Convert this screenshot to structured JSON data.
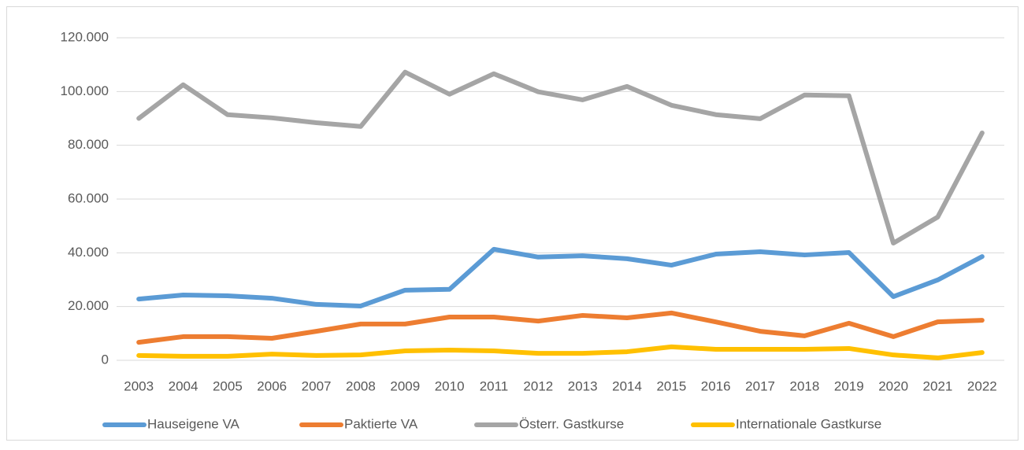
{
  "chart_data": {
    "type": "line",
    "categories": [
      "2003",
      "2004",
      "2005",
      "2006",
      "2007",
      "2008",
      "2009",
      "2010",
      "2011",
      "2012",
      "2013",
      "2014",
      "2015",
      "2016",
      "2017",
      "2018",
      "2019",
      "2020",
      "2021",
      "2022"
    ],
    "series": [
      {
        "name": "Hauseigene VA",
        "color": "#5b9bd5",
        "values": [
          22800,
          24300,
          24000,
          23100,
          20800,
          20200,
          26100,
          26400,
          41300,
          38400,
          38900,
          37800,
          35400,
          39500,
          40400,
          39200,
          40100,
          23700,
          29900,
          38600
        ]
      },
      {
        "name": "Paktierte VA",
        "color": "#ed7d31",
        "values": [
          6700,
          8800,
          8800,
          8200,
          10800,
          13500,
          13500,
          16100,
          16100,
          14600,
          16700,
          15800,
          17600,
          14300,
          10800,
          9100,
          13800,
          8800,
          14300,
          14900
        ]
      },
      {
        "name": "Österr. Gastkurse",
        "color": "#a5a5a5",
        "values": [
          90000,
          102500,
          91400,
          90200,
          88400,
          87000,
          107200,
          99000,
          106600,
          99900,
          96900,
          101900,
          94900,
          91400,
          89900,
          98700,
          98400,
          43600,
          53300,
          84600
        ]
      },
      {
        "name": "Internationale Gastkurse",
        "color": "#ffc000",
        "values": [
          1800,
          1500,
          1500,
          2300,
          1800,
          2000,
          3500,
          3800,
          3500,
          2600,
          2600,
          3200,
          5000,
          4100,
          4100,
          4100,
          4400,
          2000,
          900,
          2900
        ]
      }
    ],
    "ylim": [
      0,
      120000
    ],
    "yticks": [
      0,
      {
        "value": 20000,
        "label": "20.000"
      },
      {
        "value": 40000,
        "label": "40.000"
      },
      {
        "value": 60000,
        "label": "60.000"
      },
      {
        "value": 80000,
        "label": "80.000"
      },
      {
        "value": 100000,
        "label": "100.000"
      },
      {
        "value": 120000,
        "label": "120.000"
      }
    ],
    "grid": true,
    "legend": "bottom"
  }
}
